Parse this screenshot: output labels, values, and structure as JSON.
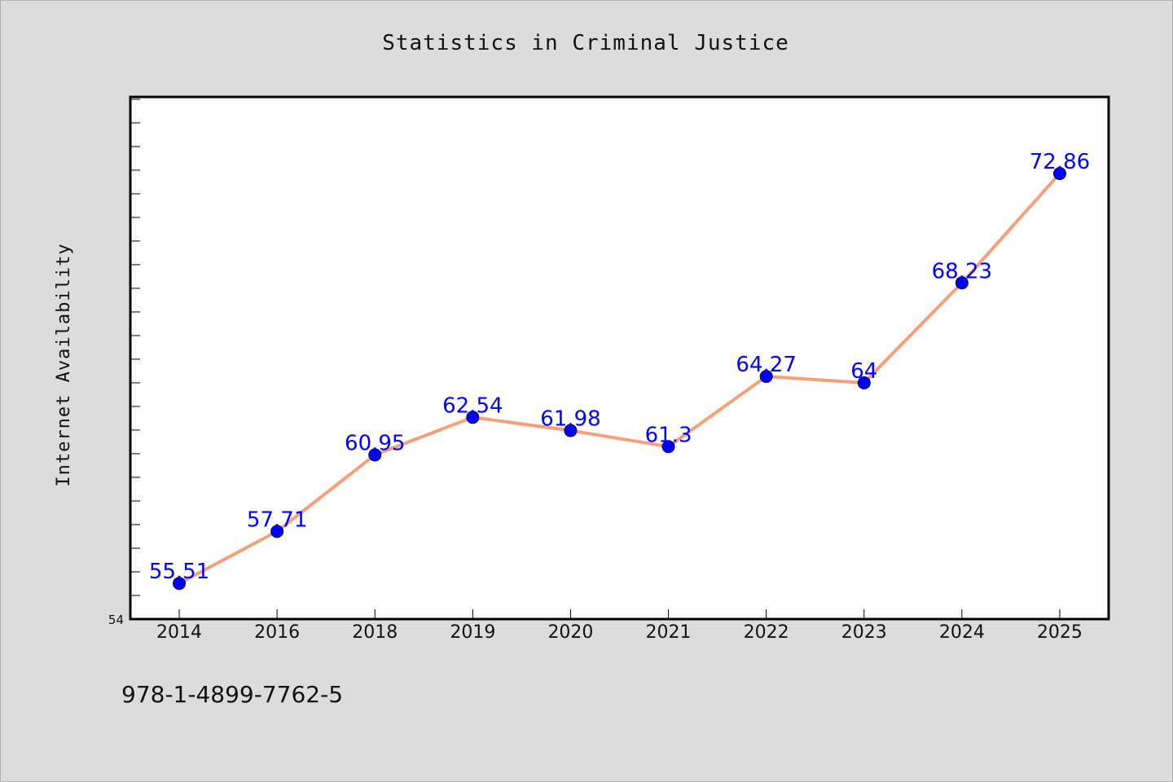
{
  "chart_data": {
    "type": "line",
    "title": "Statistics in Criminal Justice",
    "xlabel": "",
    "ylabel": "Internet Availability",
    "categories": [
      "2014",
      "2016",
      "2018",
      "2019",
      "2020",
      "2021",
      "2022",
      "2023",
      "2024",
      "2025"
    ],
    "series": [
      {
        "values": [
          55.51,
          57.71,
          60.95,
          62.54,
          61.98,
          61.3,
          64.27,
          64,
          68.23,
          72.86
        ],
        "data_labels": [
          "55.51",
          "57.71",
          "60.95",
          "62.54",
          "61.98",
          "61.3",
          "64.27",
          "64",
          "68.23",
          "72.86"
        ],
        "line_color": "#f4a07a",
        "marker_color": "#0000ff"
      }
    ],
    "y_tick_labels": [
      "54"
    ],
    "ylim": [
      54,
      76.1
    ],
    "grid": false,
    "legend": "none",
    "plot_background": "#ffffff",
    "figure_background": "#dcdcdc"
  },
  "footer": {
    "isbn": "978-1-4899-7762-5"
  }
}
